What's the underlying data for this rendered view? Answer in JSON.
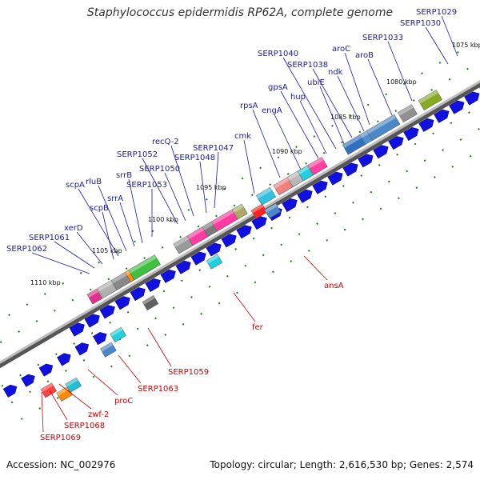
{
  "title": "Staphylococcus epidermidis RP62A, complete genome",
  "footer": {
    "accession": "Accession: NC_002976",
    "summary": "Topology: circular; Length: 2,616,530 bp; Genes: 2,574"
  },
  "colors": {
    "backbone": "#8a8a8a",
    "forward_label": "#1a1aa8",
    "reverse_label": "#cc0000",
    "cds_arrow": "#1010e0",
    "tick": "#1a7a1a"
  },
  "ticks": [
    {
      "label": "1110 kbp"
    },
    {
      "label": "1105 kbp"
    },
    {
      "label": "1100 kbp"
    },
    {
      "label": "1095 kbp"
    },
    {
      "label": "1090 kbp"
    },
    {
      "label": "1085 kbp"
    },
    {
      "label": "1080 kbp"
    },
    {
      "label": "1075 kbp"
    }
  ],
  "forward_genes": [
    "SERP1062",
    "SERP1061",
    "xerD",
    "scpB",
    "scpA",
    "rluB",
    "srrA",
    "srrB",
    "SERP1053",
    "SERP1052",
    "SERP1050",
    "recQ-2",
    "SERP1048",
    "SERP1047",
    "cmk",
    "rpsA",
    "engA",
    "gpsA",
    "hup",
    "SERP1040",
    "ubiE",
    "SERP1038",
    "ndk",
    "aroC",
    "aroB",
    "SERP1033",
    "SERP1030",
    "SERP1029"
  ],
  "reverse_genes": [
    "SERP1069",
    "SERP1068",
    "zwf-2",
    "proC",
    "SERP1063",
    "SERP1059",
    "fer",
    "ansA"
  ]
}
